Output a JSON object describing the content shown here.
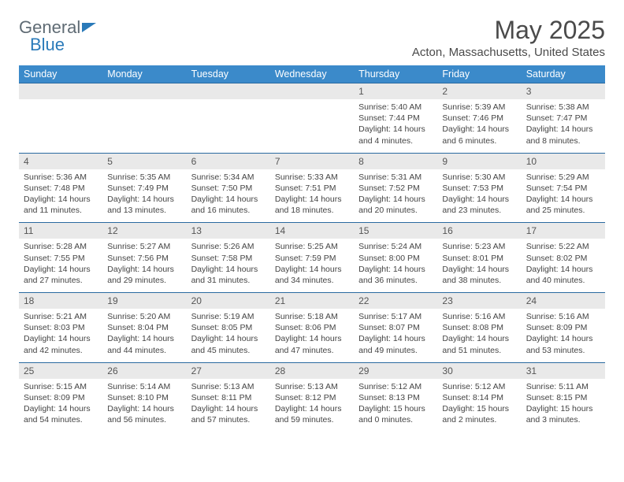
{
  "brand": {
    "line1": "General",
    "line2": "Blue"
  },
  "title": "May 2025",
  "location": "Acton, Massachusetts, United States",
  "day_headers": [
    "Sunday",
    "Monday",
    "Tuesday",
    "Wednesday",
    "Thursday",
    "Friday",
    "Saturday"
  ],
  "colors": {
    "header_bg": "#3b8aca",
    "header_text": "#ffffff",
    "daynum_bg": "#e9e9e9",
    "border_top": "#2a6aa0",
    "logo_gray": "#5f6b74",
    "logo_blue": "#2a7ab9"
  },
  "weeks": [
    {
      "nums": [
        "",
        "",
        "",
        "",
        "1",
        "2",
        "3"
      ],
      "info": [
        null,
        null,
        null,
        null,
        {
          "sunrise": "Sunrise: 5:40 AM",
          "sunset": "Sunset: 7:44 PM",
          "dl1": "Daylight: 14 hours",
          "dl2": "and 4 minutes."
        },
        {
          "sunrise": "Sunrise: 5:39 AM",
          "sunset": "Sunset: 7:46 PM",
          "dl1": "Daylight: 14 hours",
          "dl2": "and 6 minutes."
        },
        {
          "sunrise": "Sunrise: 5:38 AM",
          "sunset": "Sunset: 7:47 PM",
          "dl1": "Daylight: 14 hours",
          "dl2": "and 8 minutes."
        }
      ]
    },
    {
      "nums": [
        "4",
        "5",
        "6",
        "7",
        "8",
        "9",
        "10"
      ],
      "info": [
        {
          "sunrise": "Sunrise: 5:36 AM",
          "sunset": "Sunset: 7:48 PM",
          "dl1": "Daylight: 14 hours",
          "dl2": "and 11 minutes."
        },
        {
          "sunrise": "Sunrise: 5:35 AM",
          "sunset": "Sunset: 7:49 PM",
          "dl1": "Daylight: 14 hours",
          "dl2": "and 13 minutes."
        },
        {
          "sunrise": "Sunrise: 5:34 AM",
          "sunset": "Sunset: 7:50 PM",
          "dl1": "Daylight: 14 hours",
          "dl2": "and 16 minutes."
        },
        {
          "sunrise": "Sunrise: 5:33 AM",
          "sunset": "Sunset: 7:51 PM",
          "dl1": "Daylight: 14 hours",
          "dl2": "and 18 minutes."
        },
        {
          "sunrise": "Sunrise: 5:31 AM",
          "sunset": "Sunset: 7:52 PM",
          "dl1": "Daylight: 14 hours",
          "dl2": "and 20 minutes."
        },
        {
          "sunrise": "Sunrise: 5:30 AM",
          "sunset": "Sunset: 7:53 PM",
          "dl1": "Daylight: 14 hours",
          "dl2": "and 23 minutes."
        },
        {
          "sunrise": "Sunrise: 5:29 AM",
          "sunset": "Sunset: 7:54 PM",
          "dl1": "Daylight: 14 hours",
          "dl2": "and 25 minutes."
        }
      ]
    },
    {
      "nums": [
        "11",
        "12",
        "13",
        "14",
        "15",
        "16",
        "17"
      ],
      "info": [
        {
          "sunrise": "Sunrise: 5:28 AM",
          "sunset": "Sunset: 7:55 PM",
          "dl1": "Daylight: 14 hours",
          "dl2": "and 27 minutes."
        },
        {
          "sunrise": "Sunrise: 5:27 AM",
          "sunset": "Sunset: 7:56 PM",
          "dl1": "Daylight: 14 hours",
          "dl2": "and 29 minutes."
        },
        {
          "sunrise": "Sunrise: 5:26 AM",
          "sunset": "Sunset: 7:58 PM",
          "dl1": "Daylight: 14 hours",
          "dl2": "and 31 minutes."
        },
        {
          "sunrise": "Sunrise: 5:25 AM",
          "sunset": "Sunset: 7:59 PM",
          "dl1": "Daylight: 14 hours",
          "dl2": "and 34 minutes."
        },
        {
          "sunrise": "Sunrise: 5:24 AM",
          "sunset": "Sunset: 8:00 PM",
          "dl1": "Daylight: 14 hours",
          "dl2": "and 36 minutes."
        },
        {
          "sunrise": "Sunrise: 5:23 AM",
          "sunset": "Sunset: 8:01 PM",
          "dl1": "Daylight: 14 hours",
          "dl2": "and 38 minutes."
        },
        {
          "sunrise": "Sunrise: 5:22 AM",
          "sunset": "Sunset: 8:02 PM",
          "dl1": "Daylight: 14 hours",
          "dl2": "and 40 minutes."
        }
      ]
    },
    {
      "nums": [
        "18",
        "19",
        "20",
        "21",
        "22",
        "23",
        "24"
      ],
      "info": [
        {
          "sunrise": "Sunrise: 5:21 AM",
          "sunset": "Sunset: 8:03 PM",
          "dl1": "Daylight: 14 hours",
          "dl2": "and 42 minutes."
        },
        {
          "sunrise": "Sunrise: 5:20 AM",
          "sunset": "Sunset: 8:04 PM",
          "dl1": "Daylight: 14 hours",
          "dl2": "and 44 minutes."
        },
        {
          "sunrise": "Sunrise: 5:19 AM",
          "sunset": "Sunset: 8:05 PM",
          "dl1": "Daylight: 14 hours",
          "dl2": "and 45 minutes."
        },
        {
          "sunrise": "Sunrise: 5:18 AM",
          "sunset": "Sunset: 8:06 PM",
          "dl1": "Daylight: 14 hours",
          "dl2": "and 47 minutes."
        },
        {
          "sunrise": "Sunrise: 5:17 AM",
          "sunset": "Sunset: 8:07 PM",
          "dl1": "Daylight: 14 hours",
          "dl2": "and 49 minutes."
        },
        {
          "sunrise": "Sunrise: 5:16 AM",
          "sunset": "Sunset: 8:08 PM",
          "dl1": "Daylight: 14 hours",
          "dl2": "and 51 minutes."
        },
        {
          "sunrise": "Sunrise: 5:16 AM",
          "sunset": "Sunset: 8:09 PM",
          "dl1": "Daylight: 14 hours",
          "dl2": "and 53 minutes."
        }
      ]
    },
    {
      "nums": [
        "25",
        "26",
        "27",
        "28",
        "29",
        "30",
        "31"
      ],
      "info": [
        {
          "sunrise": "Sunrise: 5:15 AM",
          "sunset": "Sunset: 8:09 PM",
          "dl1": "Daylight: 14 hours",
          "dl2": "and 54 minutes."
        },
        {
          "sunrise": "Sunrise: 5:14 AM",
          "sunset": "Sunset: 8:10 PM",
          "dl1": "Daylight: 14 hours",
          "dl2": "and 56 minutes."
        },
        {
          "sunrise": "Sunrise: 5:13 AM",
          "sunset": "Sunset: 8:11 PM",
          "dl1": "Daylight: 14 hours",
          "dl2": "and 57 minutes."
        },
        {
          "sunrise": "Sunrise: 5:13 AM",
          "sunset": "Sunset: 8:12 PM",
          "dl1": "Daylight: 14 hours",
          "dl2": "and 59 minutes."
        },
        {
          "sunrise": "Sunrise: 5:12 AM",
          "sunset": "Sunset: 8:13 PM",
          "dl1": "Daylight: 15 hours",
          "dl2": "and 0 minutes."
        },
        {
          "sunrise": "Sunrise: 5:12 AM",
          "sunset": "Sunset: 8:14 PM",
          "dl1": "Daylight: 15 hours",
          "dl2": "and 2 minutes."
        },
        {
          "sunrise": "Sunrise: 5:11 AM",
          "sunset": "Sunset: 8:15 PM",
          "dl1": "Daylight: 15 hours",
          "dl2": "and 3 minutes."
        }
      ]
    }
  ]
}
